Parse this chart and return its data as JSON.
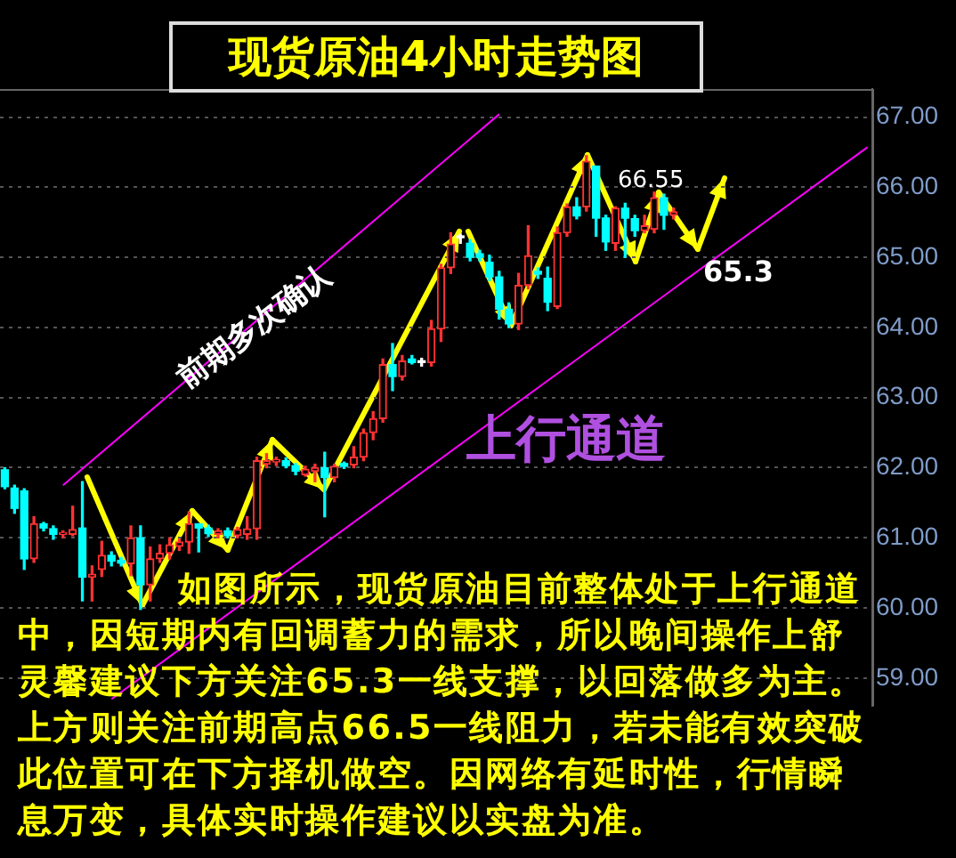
{
  "chart_data": {
    "type": "candlestick",
    "title": "现货原油4小时走势图",
    "categories": [
      null,
      null,
      null,
      null,
      null,
      null,
      null,
      null,
      null,
      null,
      null,
      null,
      null,
      null,
      null,
      null,
      null,
      null,
      null,
      null,
      null,
      null,
      null,
      null,
      null,
      null,
      null,
      null,
      null,
      null,
      null,
      null,
      null,
      null,
      null,
      null,
      null,
      null,
      null,
      null,
      null,
      null,
      null,
      null,
      null,
      null,
      null,
      null,
      null,
      null,
      null,
      null,
      null,
      null,
      null,
      null,
      null,
      null,
      null,
      null,
      null,
      null,
      null,
      null,
      null,
      null,
      null,
      null,
      null,
      null,
      null,
      null,
      null,
      null,
      null,
      null,
      null,
      null,
      null,
      null,
      null,
      null,
      null,
      null,
      null,
      null,
      null,
      null,
      null,
      null
    ],
    "ohlc": [
      [
        61.97,
        62.0,
        61.7,
        61.73
      ],
      [
        61.71,
        61.75,
        61.35,
        61.42
      ],
      [
        61.67,
        61.7,
        60.55,
        60.7
      ],
      [
        60.7,
        61.3,
        60.65,
        61.2
      ],
      [
        61.2,
        61.22,
        61.1,
        61.14
      ],
      [
        61.13,
        61.17,
        60.98,
        61.05
      ],
      [
        61.05,
        61.1,
        61.0,
        61.06
      ],
      [
        61.05,
        61.45,
        61.03,
        61.12
      ],
      [
        61.14,
        61.8,
        60.1,
        60.44
      ],
      [
        60.44,
        60.6,
        60.1,
        60.48
      ],
      [
        60.55,
        60.95,
        60.45,
        60.75
      ],
      [
        60.75,
        60.8,
        60.6,
        60.67
      ],
      [
        60.68,
        60.72,
        60.6,
        60.64
      ],
      [
        60.63,
        61.17,
        60.46,
        61.0
      ],
      [
        61.0,
        61.17,
        59.98,
        60.33
      ],
      [
        60.33,
        60.87,
        60.1,
        60.7
      ],
      [
        60.7,
        60.9,
        60.65,
        60.78
      ],
      [
        60.78,
        61.0,
        60.7,
        60.9
      ],
      [
        60.88,
        60.98,
        60.82,
        60.94
      ],
      [
        60.94,
        61.37,
        60.78,
        61.2
      ],
      [
        61.2,
        61.2,
        60.8,
        61.14
      ],
      [
        61.14,
        61.18,
        61.02,
        61.06
      ],
      [
        61.05,
        61.13,
        61.0,
        61.1
      ],
      [
        61.1,
        61.14,
        61.0,
        61.03
      ],
      [
        61.03,
        61.15,
        61.0,
        61.12
      ],
      [
        61.05,
        61.3,
        60.98,
        61.13
      ],
      [
        61.13,
        62.15,
        60.98,
        62.1
      ],
      [
        62.05,
        62.2,
        62.0,
        62.1
      ],
      [
        62.08,
        62.15,
        62.03,
        62.12
      ],
      [
        62.1,
        62.14,
        62.0,
        62.03
      ],
      [
        62.03,
        62.06,
        61.9,
        61.95
      ],
      [
        61.9,
        62.02,
        61.88,
        61.98
      ],
      [
        61.95,
        62.05,
        61.8,
        62.0
      ],
      [
        62.0,
        62.22,
        61.3,
        61.86
      ],
      [
        61.86,
        62.05,
        61.8,
        62.02
      ],
      [
        62.06,
        62.08,
        61.99,
        62.02
      ],
      [
        62.04,
        62.3,
        62.0,
        62.15
      ],
      [
        62.15,
        62.55,
        62.1,
        62.5
      ],
      [
        62.5,
        62.8,
        62.4,
        62.7
      ],
      [
        62.7,
        63.55,
        62.65,
        63.47
      ],
      [
        63.47,
        63.77,
        63.1,
        63.3
      ],
      [
        63.3,
        63.6,
        63.25,
        63.52
      ],
      [
        63.55,
        63.6,
        63.48,
        63.5
      ],
      [
        63.5,
        63.56,
        63.45,
        63.5
      ],
      [
        63.5,
        64.1,
        63.45,
        63.98
      ],
      [
        63.98,
        64.9,
        63.8,
        64.85
      ],
      [
        64.85,
        65.35,
        64.77,
        65.19
      ],
      [
        65.28,
        65.33,
        65.2,
        65.28
      ],
      [
        65.2,
        65.25,
        64.95,
        65.0
      ],
      [
        65.05,
        65.1,
        64.95,
        65.0
      ],
      [
        64.93,
        65.03,
        64.67,
        64.72
      ],
      [
        64.72,
        64.8,
        64.12,
        64.26
      ],
      [
        64.26,
        64.35,
        64.0,
        64.05
      ],
      [
        64.05,
        64.77,
        63.97,
        64.6
      ],
      [
        64.6,
        65.45,
        64.55,
        65.02
      ],
      [
        64.8,
        64.85,
        64.7,
        64.76
      ],
      [
        64.7,
        64.86,
        64.24,
        64.36
      ],
      [
        64.3,
        65.43,
        64.27,
        65.35
      ],
      [
        65.35,
        65.76,
        65.3,
        65.72
      ],
      [
        65.72,
        65.85,
        65.55,
        65.59
      ],
      [
        65.72,
        66.45,
        65.66,
        66.37
      ],
      [
        66.3,
        66.3,
        65.3,
        65.56
      ],
      [
        65.56,
        65.6,
        65.1,
        65.22
      ],
      [
        65.2,
        65.72,
        65.1,
        65.7
      ],
      [
        65.7,
        65.77,
        65.0,
        65.56
      ],
      [
        65.55,
        65.6,
        65.3,
        65.38
      ],
      [
        65.38,
        65.6,
        65.35,
        65.45
      ],
      [
        65.4,
        65.93,
        65.35,
        65.85
      ],
      [
        65.85,
        65.9,
        65.4,
        65.6
      ],
      [
        65.6,
        65.7,
        65.55,
        65.65
      ],
      null,
      null,
      null,
      null,
      null,
      null,
      null,
      null,
      null,
      null,
      null,
      null,
      null,
      null,
      null,
      null,
      null,
      null,
      null,
      null
    ],
    "series": [
      {
        "type": "line",
        "color": "#ff00ff",
        "values": [
          null,
          null,
          null,
          null,
          null,
          null,
          61.75,
          null,
          null,
          null,
          null,
          null,
          null,
          null,
          null,
          null,
          null,
          null,
          null,
          null,
          null,
          null,
          null,
          null,
          null,
          null,
          null,
          null,
          null,
          null,
          null,
          null,
          null,
          null,
          null,
          null,
          null,
          null,
          null,
          null,
          null,
          null,
          null,
          null,
          null,
          null,
          null,
          null,
          null,
          null,
          null,
          67.04,
          null,
          null,
          null,
          null,
          null,
          null,
          null,
          null,
          null,
          null,
          null,
          null,
          null,
          null,
          null,
          null,
          null,
          null,
          null,
          null,
          null,
          null,
          null,
          null,
          null,
          null,
          null,
          null,
          null,
          null,
          null,
          null,
          null,
          null,
          null,
          null,
          null,
          null
        ]
      },
      {
        "type": "line",
        "color": "#ff00ff",
        "values": [
          null,
          null,
          null,
          null,
          null,
          null,
          null,
          null,
          null,
          null,
          null,
          58.7,
          null,
          null,
          null,
          null,
          null,
          null,
          null,
          null,
          null,
          null,
          null,
          null,
          null,
          null,
          null,
          null,
          null,
          null,
          null,
          null,
          null,
          null,
          null,
          null,
          null,
          null,
          null,
          null,
          null,
          null,
          null,
          null,
          null,
          null,
          null,
          null,
          null,
          null,
          null,
          null,
          null,
          null,
          null,
          null,
          null,
          null,
          null,
          null,
          null,
          null,
          null,
          null,
          null,
          null,
          null,
          null,
          null,
          null,
          null,
          null,
          null,
          null,
          null,
          null,
          null,
          null,
          null,
          null,
          null,
          null,
          null,
          null,
          null,
          null,
          null,
          null,
          null,
          66.57
        ]
      }
    ],
    "ylim": [
      58.6,
      67.4
    ],
    "yticks": [
      {
        "value": 59,
        "label": "59.00"
      },
      {
        "value": 60,
        "label": "60.00"
      },
      {
        "value": 61,
        "label": "61.00"
      },
      {
        "value": 62,
        "label": "62.00"
      },
      {
        "value": 63,
        "label": "63.00"
      },
      {
        "value": 64,
        "label": "64.00"
      },
      {
        "value": 65,
        "label": "65.00"
      },
      {
        "value": 66,
        "label": "66.00"
      },
      {
        "value": 67,
        "label": "67.00"
      }
    ],
    "grid": "y",
    "tick_labels": "y",
    "annotations": [
      "前期多次确认",
      "上行通道",
      "66.55",
      "65.3",
      "如图所示，现货原油目前整体处于上行通道中，因短期内有回调蓄力的需求，所以晚间操作上舒灵馨建议下方关注65.3一线支撑，以回落做多为主。上方则关注前期高点66.5一线阻力，若未能有效突破此位置可在下方择机做空。因网络有延时性，行情瞬息万变，具体实时操作建议以实盘为准。"
    ]
  }
}
